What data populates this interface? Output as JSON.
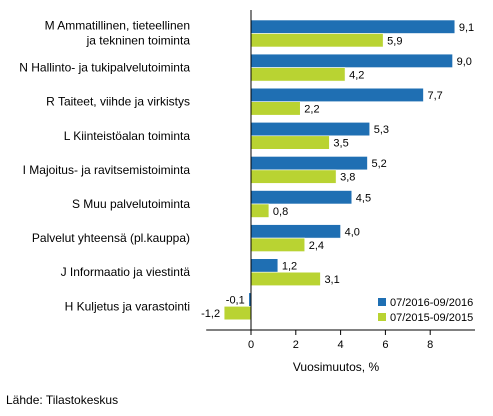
{
  "chart_data": {
    "type": "bar",
    "orientation": "horizontal",
    "categories": [
      "M Ammatillinen, tieteellinen\nja tekninen toiminta",
      "N Hallinto- ja tukipalvelutoiminta",
      "R Taiteet, viihde ja virkistys",
      "L Kiinteistöalan toiminta",
      "I Majoitus- ja ravitsemistoiminta",
      "S Muu palvelutoiminta",
      "Palvelut yhteensä (pl.kauppa)",
      "J Informaatio ja viestintä",
      "H Kuljetus ja varastointi"
    ],
    "series": [
      {
        "name": "07/2016-09/2016",
        "color": "#1f6fb3",
        "values": [
          9.1,
          9.0,
          7.7,
          5.3,
          5.2,
          4.5,
          4.0,
          1.2,
          -0.1
        ],
        "labels": [
          "9,1",
          "9,0",
          "7,7",
          "5,3",
          "5,2",
          "4,5",
          "4,0",
          "1,2",
          "-0,1"
        ]
      },
      {
        "name": "07/2015-09/2015",
        "color": "#b9d332",
        "values": [
          5.9,
          4.2,
          2.2,
          3.5,
          3.8,
          0.8,
          2.4,
          3.1,
          -1.2
        ],
        "labels": [
          "5,9",
          "4,2",
          "2,2",
          "3,5",
          "3,8",
          "0,8",
          "2,4",
          "3,1",
          "-1,2"
        ]
      }
    ],
    "xlabel": "Vuosimuutos, %",
    "xlim": [
      -2,
      10
    ],
    "xticks": [
      0,
      2,
      4,
      6,
      8
    ],
    "legend_position": "bottom-right",
    "grid": false
  },
  "source": "Lähde: Tilastokeskus"
}
